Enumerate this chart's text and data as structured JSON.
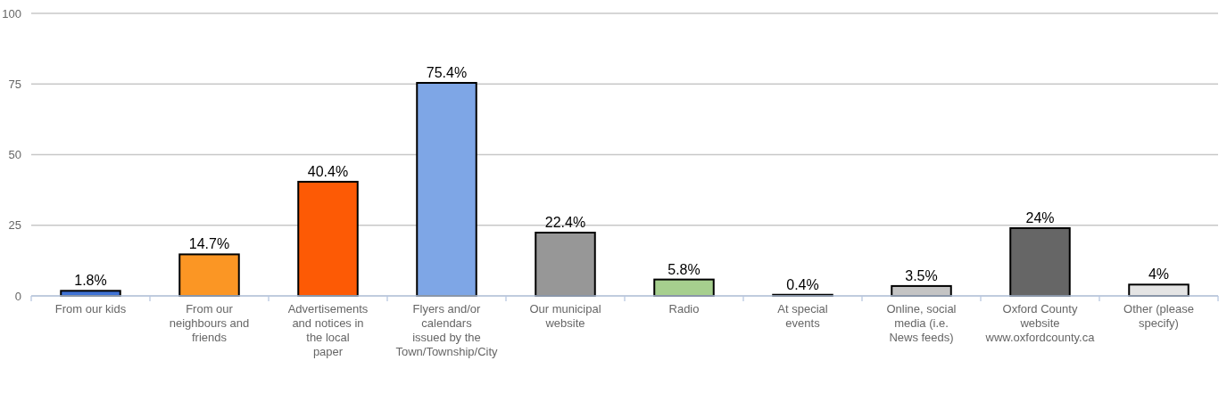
{
  "chart_data": {
    "type": "bar",
    "categories": [
      "From our kids",
      "From our neighbours and friends",
      "Advertisements and notices in the local paper",
      "Flyers and/or calendars issued by the Town/Township/City",
      "Our municipal website",
      "Radio",
      "At special events",
      "Online, social media (i.e. News feeds)",
      "Oxford County website www.oxfordcounty.ca",
      "Other (please specify)"
    ],
    "values": [
      1.8,
      14.7,
      40.4,
      75.4,
      22.4,
      5.8,
      0.4,
      3.5,
      24,
      4
    ],
    "colors": [
      "#3f72d4",
      "#fb9624",
      "#fd5a05",
      "#7ea6e6",
      "#979797",
      "#a6cf8e",
      "#b0b0b0",
      "#c4c4c4",
      "#666666",
      "#e4e4e4"
    ],
    "value_labels": [
      "1.8%",
      "14.7%",
      "40.4%",
      "75.4%",
      "22.4%",
      "5.8%",
      "0.4%",
      "3.5%",
      "24%",
      "4%"
    ],
    "ylim": [
      0,
      100
    ],
    "yticks": [
      0,
      25,
      50,
      75,
      100
    ],
    "grid": "y"
  }
}
